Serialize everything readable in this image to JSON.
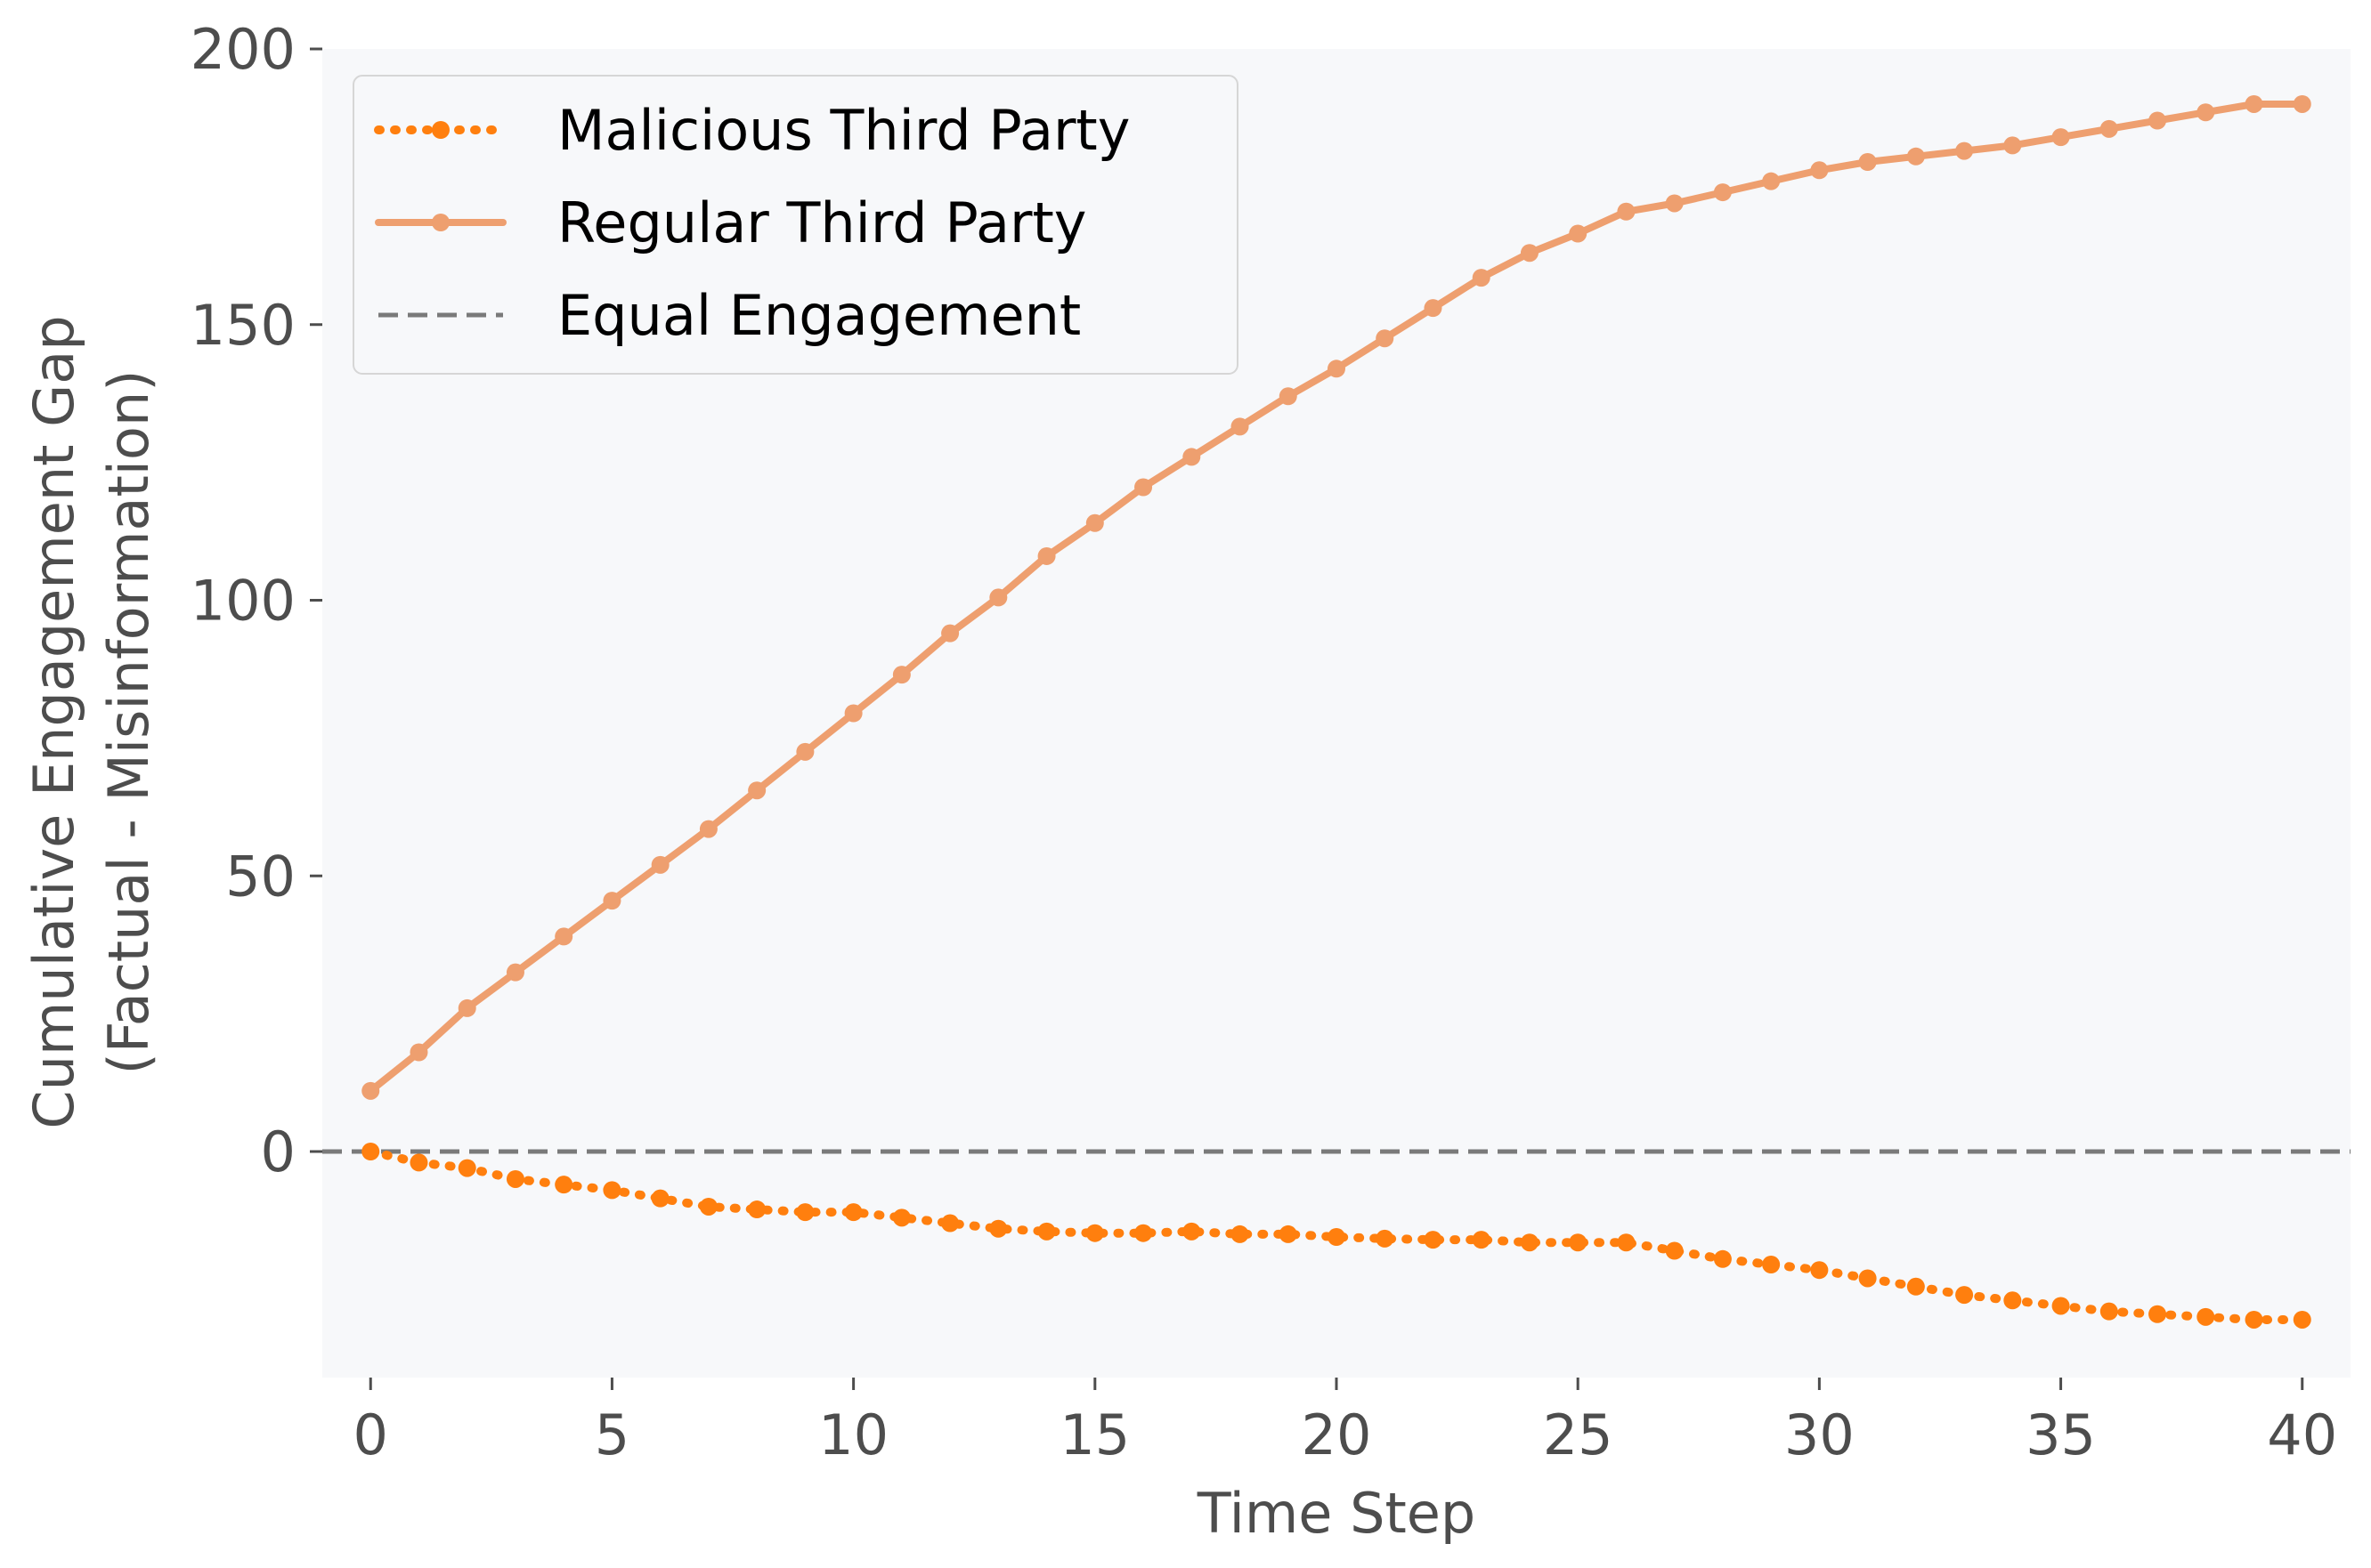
{
  "chart_data": {
    "type": "line",
    "title": "",
    "xlabel": "Time Step",
    "ylabel_lines": [
      "Cumulative Engagement Gap",
      "(Factual - Misinformation)"
    ],
    "xlim": [
      -1,
      41
    ],
    "ylim": [
      -41,
      200
    ],
    "x_ticks": [
      0,
      5,
      10,
      15,
      20,
      25,
      30,
      35,
      40
    ],
    "y_ticks": [
      0,
      50,
      100,
      150,
      200
    ],
    "x": [
      0,
      1,
      2,
      3,
      4,
      5,
      6,
      7,
      8,
      9,
      10,
      11,
      12,
      13,
      14,
      15,
      16,
      17,
      18,
      19,
      20,
      21,
      22,
      23,
      24,
      25,
      26,
      27,
      28,
      29,
      30,
      31,
      32,
      33,
      34,
      35,
      36,
      37,
      38,
      39,
      40
    ],
    "series": [
      {
        "name": "Malicious Third Party",
        "style": "dotted",
        "color": "#ff7f0e",
        "values": [
          0,
          -2,
          -3,
          -5,
          -6,
          -7,
          -8.5,
          -10,
          -10.5,
          -11,
          -11,
          -12,
          -13,
          -14,
          -14.5,
          -14.8,
          -14.8,
          -14.5,
          -15,
          -15,
          -15.5,
          -15.8,
          -16,
          -16,
          -16.5,
          -16.5,
          -16.5,
          -18,
          -19.5,
          -20.5,
          -21.5,
          -23,
          -24.5,
          -26,
          -27,
          -28,
          -29,
          -29.5,
          -30,
          -30.5,
          -30.5
        ]
      },
      {
        "name": "Regular Third Party",
        "style": "solid",
        "color": "#ee9f6f",
        "values": [
          11,
          18,
          26,
          32.5,
          39,
          45.5,
          52,
          58.5,
          65.5,
          72.5,
          79.5,
          86.5,
          94,
          100.5,
          108,
          114,
          120.5,
          126,
          131.5,
          137,
          142,
          147.5,
          153,
          158.5,
          163,
          166.5,
          170.5,
          172,
          174,
          176,
          178,
          179.5,
          180.5,
          181.5,
          182.5,
          184,
          185.5,
          187,
          188.5,
          190,
          190
        ]
      }
    ],
    "reference_line": {
      "name": "Equal Engagement",
      "y": 0,
      "style": "dashed",
      "color": "#7a7a7a"
    },
    "legend_position": "top-left",
    "grid": false,
    "plot_background": "#f7f8fa"
  }
}
